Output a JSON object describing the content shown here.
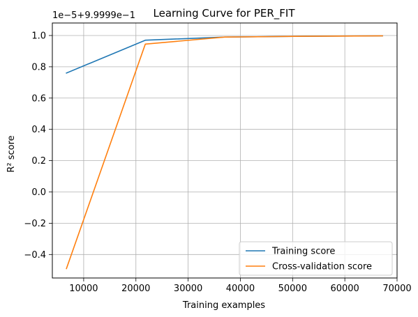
{
  "chart_data": {
    "type": "line",
    "title": "Learning Curve for PER_FIT",
    "xlabel": "Training examples",
    "ylabel": "R² score",
    "y_offset_text": "1e−5+9.9999e−1",
    "xlim": [
      4000,
      70000
    ],
    "ylim": [
      -0.55,
      1.08
    ],
    "x_ticks": [
      10000,
      20000,
      30000,
      40000,
      50000,
      60000,
      70000
    ],
    "x_tick_labels": [
      "10000",
      "20000",
      "30000",
      "40000",
      "50000",
      "60000",
      "70000"
    ],
    "y_ticks": [
      -0.4,
      -0.2,
      0.0,
      0.2,
      0.4,
      0.6,
      0.8,
      1.0
    ],
    "y_tick_labels": [
      "−0.4",
      "−0.2",
      "0.0",
      "0.2",
      "0.4",
      "0.6",
      "0.8",
      "1.0"
    ],
    "grid": true,
    "legend_position": "lower-right",
    "series": [
      {
        "name": "Training score",
        "color": "#1f77b4",
        "x": [
          6700,
          21800,
          37000,
          52100,
          67200
        ],
        "y": [
          0.76,
          0.97,
          0.99,
          0.995,
          0.998
        ]
      },
      {
        "name": "Cross-validation score",
        "color": "#ff7f0e",
        "x": [
          6700,
          21800,
          37000,
          52100,
          67200
        ],
        "y": [
          -0.49,
          0.945,
          0.99,
          0.995,
          0.998
        ]
      }
    ]
  }
}
